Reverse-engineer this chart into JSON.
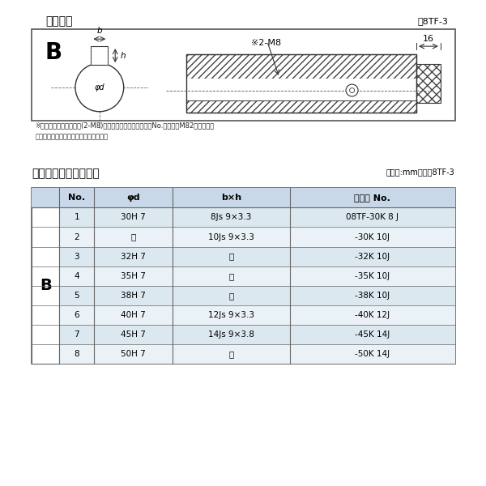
{
  "title_diagram": "軸穴形状",
  "fig_label": "図8TF-3",
  "note1": "※セットボルト用タップ(2-M8)が必要な場合は右記コードNo.の末尾にM82を付ける。",
  "note2": "（セットボルトは付属されています。）",
  "table_title": "軸穴形状コード一覧表",
  "table_unit": "（単位:mm）　表8TF-3",
  "bg_color": "#ffffff",
  "table_header_bg": "#c8d8e8",
  "table_row_bg1": "#dce8f0",
  "table_row_bg2": "#eaf2f8",
  "border_color": "#888888",
  "table_border": "#666666",
  "header_col": [
    "No.",
    "φd",
    "b×h",
    "コード No."
  ],
  "rows": [
    [
      "1",
      "30H 7",
      "8Js 9×3.3",
      "08TF-30K 8 J"
    ],
    [
      "2",
      "〃",
      "10Js 9×3.3",
      "-30K 10J"
    ],
    [
      "3",
      "32H 7",
      "〃",
      "-32K 10J"
    ],
    [
      "4",
      "35H 7",
      "〃",
      "-35K 10J"
    ],
    [
      "5",
      "38H 7",
      "〃",
      "-38K 10J"
    ],
    [
      "6",
      "40H 7",
      "12Js 9×3.3",
      "-40K 12J"
    ],
    [
      "7",
      "45H 7",
      "14Js 9×3.8",
      "-45K 14J"
    ],
    [
      "8",
      "50H 7",
      "〃",
      "-50K 14J"
    ]
  ],
  "B_label": "B"
}
